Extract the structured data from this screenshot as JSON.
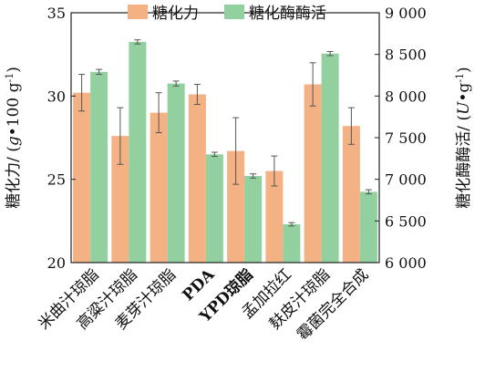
{
  "chart_data": {
    "type": "bar",
    "categories": [
      "米曲汁琼脂",
      "高粱汁琼脂",
      "麦芽汁琼脂",
      "PDA",
      "YPD琼脂",
      "孟加拉红",
      "麸皮汁琼脂",
      "霉菌完全合成"
    ],
    "series": [
      {
        "name": "糖化力",
        "axis": "left",
        "color": "#f4b183",
        "values": [
          30.2,
          27.6,
          29.0,
          30.1,
          26.7,
          25.5,
          30.7,
          28.2
        ],
        "errors": [
          1.1,
          1.7,
          1.2,
          0.6,
          2.0,
          0.9,
          1.3,
          1.1
        ]
      },
      {
        "name": "糖化酶酶活",
        "axis": "right",
        "color": "#93d0a0",
        "values": [
          8290,
          8650,
          8150,
          7300,
          7040,
          6460,
          8510,
          6850
        ],
        "errors": [
          30,
          25,
          30,
          25,
          25,
          20,
          25,
          25
        ]
      }
    ],
    "ylabel_left_parts": [
      "糖化力/ (",
      "g",
      "•",
      "100 g",
      "-1",
      ")"
    ],
    "ylabel_right_parts": [
      "糖化酶酶活/ (",
      "U",
      "•",
      "g",
      "-1",
      ")"
    ],
    "ylim_left": [
      20,
      35
    ],
    "ylim_right": [
      6000,
      9000
    ],
    "yticks_left": [
      "20",
      "25",
      "30",
      "35"
    ],
    "yticks_right": [
      "6 000",
      "6 500",
      "7 000",
      "7 500",
      "8 000",
      "8 500",
      "9 000"
    ],
    "legend_position": "top-center",
    "grid": false
  }
}
